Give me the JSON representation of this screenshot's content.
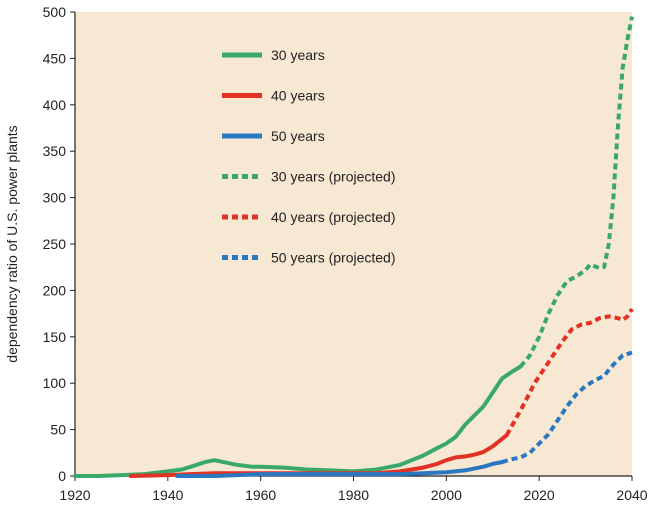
{
  "colors": {
    "plot_background": "#f6e8d2",
    "axis": "#222222",
    "green": "#3aa86b",
    "red": "#e23125",
    "blue": "#2a78c0"
  },
  "chart_data": {
    "type": "line",
    "title": "",
    "xlabel": "",
    "ylabel": "dependency ratio of U.S. power plants",
    "xlim": [
      1920,
      2040
    ],
    "ylim": [
      0,
      500
    ],
    "x_ticks": [
      1920,
      1940,
      1960,
      1980,
      2000,
      2020,
      2040
    ],
    "y_ticks": [
      0,
      50,
      100,
      150,
      200,
      250,
      300,
      350,
      400,
      450,
      500
    ],
    "grid": false,
    "legend_position": "top-center",
    "series": [
      {
        "name": "30 years",
        "color": "green",
        "style": "solid",
        "points": [
          [
            1920,
            0
          ],
          [
            1925,
            0
          ],
          [
            1930,
            1
          ],
          [
            1935,
            2
          ],
          [
            1940,
            5
          ],
          [
            1943,
            7
          ],
          [
            1945,
            10
          ],
          [
            1948,
            15
          ],
          [
            1950,
            17
          ],
          [
            1952,
            15
          ],
          [
            1955,
            12
          ],
          [
            1958,
            10
          ],
          [
            1960,
            10
          ],
          [
            1965,
            9
          ],
          [
            1970,
            7
          ],
          [
            1975,
            6
          ],
          [
            1980,
            5
          ],
          [
            1985,
            7
          ],
          [
            1990,
            12
          ],
          [
            1992,
            16
          ],
          [
            1995,
            22
          ],
          [
            1998,
            30
          ],
          [
            2000,
            35
          ],
          [
            2002,
            42
          ],
          [
            2004,
            55
          ],
          [
            2006,
            65
          ],
          [
            2008,
            75
          ],
          [
            2010,
            90
          ],
          [
            2012,
            105
          ],
          [
            2014,
            112
          ],
          [
            2016,
            118
          ]
        ]
      },
      {
        "name": "40 years",
        "color": "red",
        "style": "solid",
        "points": [
          [
            1932,
            0
          ],
          [
            1940,
            1
          ],
          [
            1945,
            2
          ],
          [
            1950,
            3
          ],
          [
            1955,
            3
          ],
          [
            1960,
            3
          ],
          [
            1970,
            3
          ],
          [
            1980,
            3
          ],
          [
            1985,
            3
          ],
          [
            1990,
            5
          ],
          [
            1995,
            9
          ],
          [
            1998,
            13
          ],
          [
            2000,
            17
          ],
          [
            2002,
            20
          ],
          [
            2004,
            21
          ],
          [
            2006,
            23
          ],
          [
            2008,
            26
          ],
          [
            2010,
            32
          ],
          [
            2012,
            40
          ],
          [
            2013,
            44
          ]
        ]
      },
      {
        "name": "50 years",
        "color": "blue",
        "style": "solid",
        "points": [
          [
            1942,
            0
          ],
          [
            1950,
            0
          ],
          [
            1955,
            1
          ],
          [
            1960,
            2
          ],
          [
            1970,
            2
          ],
          [
            1980,
            2
          ],
          [
            1990,
            2
          ],
          [
            1995,
            3
          ],
          [
            2000,
            4
          ],
          [
            2004,
            6
          ],
          [
            2008,
            10
          ],
          [
            2010,
            13
          ],
          [
            2012,
            15
          ]
        ]
      },
      {
        "name": "30 years (projected)",
        "color": "green",
        "style": "dashed",
        "points": [
          [
            2016,
            118
          ],
          [
            2018,
            130
          ],
          [
            2020,
            150
          ],
          [
            2022,
            175
          ],
          [
            2024,
            195
          ],
          [
            2026,
            210
          ],
          [
            2028,
            215
          ],
          [
            2030,
            222
          ],
          [
            2031,
            228
          ],
          [
            2033,
            224
          ],
          [
            2034,
            225
          ],
          [
            2035,
            250
          ],
          [
            2036,
            300
          ],
          [
            2037,
            380
          ],
          [
            2038,
            440
          ],
          [
            2039,
            470
          ],
          [
            2040,
            495
          ]
        ]
      },
      {
        "name": "40 years (projected)",
        "color": "red",
        "style": "dashed",
        "points": [
          [
            2013,
            44
          ],
          [
            2015,
            62
          ],
          [
            2017,
            80
          ],
          [
            2019,
            100
          ],
          [
            2021,
            115
          ],
          [
            2023,
            130
          ],
          [
            2025,
            145
          ],
          [
            2027,
            158
          ],
          [
            2029,
            163
          ],
          [
            2031,
            165
          ],
          [
            2033,
            170
          ],
          [
            2035,
            172
          ],
          [
            2037,
            170
          ],
          [
            2038,
            168
          ],
          [
            2039,
            172
          ],
          [
            2040,
            180
          ]
        ]
      },
      {
        "name": "50 years (projected)",
        "color": "blue",
        "style": "dashed",
        "points": [
          [
            2012,
            15
          ],
          [
            2014,
            18
          ],
          [
            2016,
            20
          ],
          [
            2018,
            25
          ],
          [
            2020,
            35
          ],
          [
            2022,
            45
          ],
          [
            2024,
            60
          ],
          [
            2026,
            75
          ],
          [
            2028,
            88
          ],
          [
            2030,
            97
          ],
          [
            2032,
            103
          ],
          [
            2034,
            108
          ],
          [
            2036,
            120
          ],
          [
            2038,
            130
          ],
          [
            2040,
            133
          ]
        ]
      }
    ]
  }
}
